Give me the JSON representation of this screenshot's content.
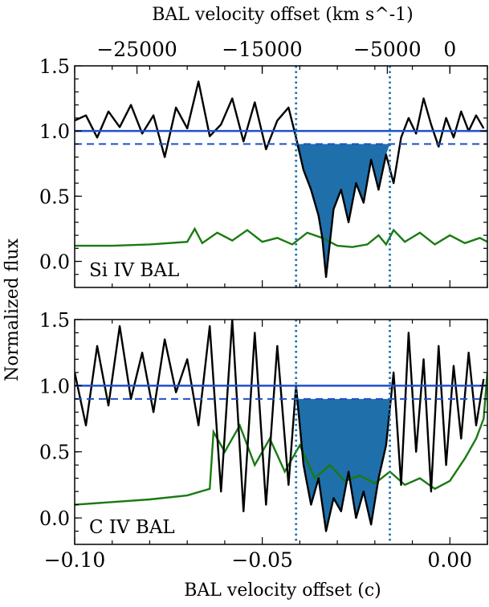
{
  "figure": {
    "ylabel": "Normalized flux",
    "xlabel_bottom": "BAL velocity offset (c)",
    "xlabel_top": "BAL velocity offset (km s^-1)"
  },
  "colors": {
    "spectrum": "#000000",
    "error": "#1a7a12",
    "continuum": "#1f4fcc",
    "fill": "#1f6faa",
    "marker": "#1f77b4",
    "label": "#1f6faa"
  },
  "chart_data": [
    {
      "type": "line",
      "label": "Si IV BAL",
      "xlim": [
        -0.1,
        0.01
      ],
      "ylim": [
        -0.2,
        1.5
      ],
      "ticks_y": [
        "0.0",
        "0.5",
        "1.0",
        "1.5"
      ],
      "top_ticks": [
        "−25000",
        "−15000",
        "−5000",
        "0"
      ],
      "top_tick_values_kms": [
        -25000,
        -15000,
        -5000,
        0
      ],
      "continuum_level": 1.0,
      "threshold_level": 0.9,
      "bal_region": [
        -0.041,
        -0.016
      ],
      "spectrum": [
        [
          -0.1,
          1.08
        ],
        [
          -0.097,
          1.12
        ],
        [
          -0.094,
          0.95
        ],
        [
          -0.091,
          1.15
        ],
        [
          -0.088,
          1.03
        ],
        [
          -0.085,
          1.2
        ],
        [
          -0.082,
          0.98
        ],
        [
          -0.079,
          1.12
        ],
        [
          -0.076,
          0.8
        ],
        [
          -0.073,
          1.18
        ],
        [
          -0.07,
          1.02
        ],
        [
          -0.067,
          1.38
        ],
        [
          -0.064,
          0.96
        ],
        [
          -0.061,
          1.05
        ],
        [
          -0.058,
          1.25
        ],
        [
          -0.055,
          0.92
        ],
        [
          -0.052,
          1.22
        ],
        [
          -0.049,
          0.86
        ],
        [
          -0.046,
          1.08
        ],
        [
          -0.043,
          1.18
        ],
        [
          -0.041,
          0.95
        ],
        [
          -0.039,
          0.7
        ],
        [
          -0.037,
          0.55
        ],
        [
          -0.035,
          0.35
        ],
        [
          -0.034,
          0.18
        ],
        [
          -0.033,
          -0.12
        ],
        [
          -0.031,
          0.4
        ],
        [
          -0.029,
          0.55
        ],
        [
          -0.027,
          0.3
        ],
        [
          -0.025,
          0.6
        ],
        [
          -0.023,
          0.45
        ],
        [
          -0.021,
          0.78
        ],
        [
          -0.019,
          0.55
        ],
        [
          -0.017,
          0.82
        ],
        [
          -0.015,
          0.6
        ],
        [
          -0.013,
          0.95
        ],
        [
          -0.011,
          1.1
        ],
        [
          -0.009,
          0.98
        ],
        [
          -0.007,
          1.25
        ],
        [
          -0.005,
          1.05
        ],
        [
          -0.003,
          0.88
        ],
        [
          -0.001,
          1.1
        ],
        [
          0.001,
          0.95
        ],
        [
          0.003,
          1.15
        ],
        [
          0.005,
          1.0
        ],
        [
          0.007,
          1.12
        ],
        [
          0.009,
          1.02
        ]
      ],
      "error": [
        [
          -0.1,
          0.12
        ],
        [
          -0.09,
          0.12
        ],
        [
          -0.08,
          0.13
        ],
        [
          -0.07,
          0.15
        ],
        [
          -0.068,
          0.25
        ],
        [
          -0.066,
          0.14
        ],
        [
          -0.062,
          0.22
        ],
        [
          -0.058,
          0.16
        ],
        [
          -0.054,
          0.24
        ],
        [
          -0.05,
          0.15
        ],
        [
          -0.046,
          0.18
        ],
        [
          -0.042,
          0.13
        ],
        [
          -0.038,
          0.22
        ],
        [
          -0.034,
          0.18
        ],
        [
          -0.03,
          0.12
        ],
        [
          -0.026,
          0.11
        ],
        [
          -0.022,
          0.13
        ],
        [
          -0.019,
          0.2
        ],
        [
          -0.017,
          0.13
        ],
        [
          -0.015,
          0.24
        ],
        [
          -0.012,
          0.15
        ],
        [
          -0.008,
          0.22
        ],
        [
          -0.004,
          0.13
        ],
        [
          0.0,
          0.2
        ],
        [
          0.004,
          0.14
        ],
        [
          0.008,
          0.18
        ],
        [
          0.01,
          0.15
        ]
      ]
    },
    {
      "type": "line",
      "label": "C IV BAL",
      "xlim": [
        -0.1,
        0.01
      ],
      "ylim": [
        -0.2,
        1.5
      ],
      "ticks_x": [
        "−0.10",
        "−0.05",
        "0.00"
      ],
      "tick_values_x": [
        -0.1,
        -0.05,
        0.0
      ],
      "ticks_y": [
        "0.0",
        "0.5",
        "1.0",
        "1.5"
      ],
      "continuum_level": 1.0,
      "threshold_level": 0.9,
      "bal_region": [
        -0.041,
        -0.016
      ],
      "spectrum": [
        [
          -0.1,
          1.1
        ],
        [
          -0.097,
          0.7
        ],
        [
          -0.094,
          1.3
        ],
        [
          -0.091,
          0.85
        ],
        [
          -0.088,
          1.45
        ],
        [
          -0.085,
          0.9
        ],
        [
          -0.082,
          1.25
        ],
        [
          -0.079,
          0.8
        ],
        [
          -0.076,
          1.35
        ],
        [
          -0.073,
          0.95
        ],
        [
          -0.07,
          1.2
        ],
        [
          -0.067,
          0.7
        ],
        [
          -0.064,
          1.45
        ],
        [
          -0.061,
          0.2
        ],
        [
          -0.058,
          1.5
        ],
        [
          -0.055,
          0.05
        ],
        [
          -0.052,
          1.4
        ],
        [
          -0.049,
          0.1
        ],
        [
          -0.046,
          1.3
        ],
        [
          -0.043,
          0.25
        ],
        [
          -0.041,
          1.0
        ],
        [
          -0.039,
          0.4
        ],
        [
          -0.037,
          0.1
        ],
        [
          -0.035,
          0.3
        ],
        [
          -0.033,
          -0.1
        ],
        [
          -0.031,
          0.15
        ],
        [
          -0.029,
          0.05
        ],
        [
          -0.027,
          0.35
        ],
        [
          -0.025,
          0.0
        ],
        [
          -0.023,
          0.2
        ],
        [
          -0.021,
          -0.05
        ],
        [
          -0.019,
          0.3
        ],
        [
          -0.017,
          0.55
        ],
        [
          -0.015,
          1.1
        ],
        [
          -0.013,
          0.25
        ],
        [
          -0.011,
          1.4
        ],
        [
          -0.009,
          0.5
        ],
        [
          -0.007,
          1.2
        ],
        [
          -0.005,
          0.2
        ],
        [
          -0.003,
          1.3
        ],
        [
          -0.001,
          0.4
        ],
        [
          0.001,
          1.15
        ],
        [
          0.003,
          0.6
        ],
        [
          0.005,
          1.25
        ],
        [
          0.007,
          0.7
        ],
        [
          0.009,
          1.05
        ]
      ],
      "error": [
        [
          -0.1,
          0.1
        ],
        [
          -0.09,
          0.12
        ],
        [
          -0.08,
          0.14
        ],
        [
          -0.07,
          0.17
        ],
        [
          -0.064,
          0.22
        ],
        [
          -0.063,
          0.65
        ],
        [
          -0.06,
          0.5
        ],
        [
          -0.056,
          0.7
        ],
        [
          -0.052,
          0.4
        ],
        [
          -0.048,
          0.6
        ],
        [
          -0.044,
          0.35
        ],
        [
          -0.04,
          0.55
        ],
        [
          -0.036,
          0.3
        ],
        [
          -0.032,
          0.4
        ],
        [
          -0.028,
          0.28
        ],
        [
          -0.024,
          0.32
        ],
        [
          -0.02,
          0.26
        ],
        [
          -0.016,
          0.35
        ],
        [
          -0.012,
          0.25
        ],
        [
          -0.008,
          0.3
        ],
        [
          -0.004,
          0.22
        ],
        [
          0.0,
          0.28
        ],
        [
          0.004,
          0.45
        ],
        [
          0.007,
          0.6
        ],
        [
          0.009,
          0.75
        ],
        [
          0.01,
          1.1
        ]
      ]
    }
  ]
}
